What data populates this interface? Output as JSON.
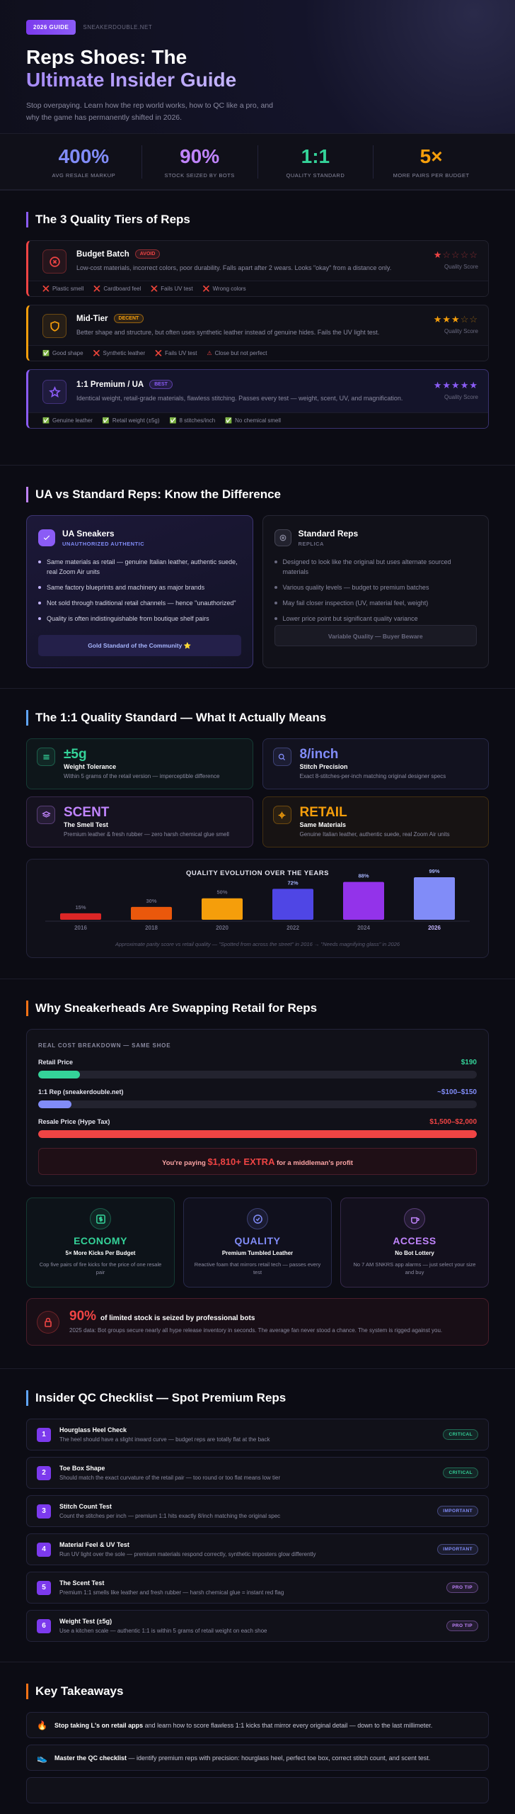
{
  "header": {
    "badge": "2026 GUIDE",
    "site": "SNEAKERDOUBLE.NET",
    "title_line1": "Reps Shoes: The",
    "title_line2": "Ultimate Insider Guide",
    "subtitle": "Stop overpaying. Learn how the rep world works, how to QC like a pro, and why the game has permanently shifted in 2026."
  },
  "stats": [
    {
      "value": "400%",
      "label": "AVG RESALE MARKUP",
      "color": "#818cf8"
    },
    {
      "value": "90%",
      "label": "STOCK SEIZED BY BOTS",
      "color": "#c084fc"
    },
    {
      "value": "1:1",
      "label": "QUALITY STANDARD",
      "color": "#34d399"
    },
    {
      "value": "5×",
      "label": "MORE PAIRS PER BUDGET",
      "color": "#f59e0b"
    }
  ],
  "tiers": {
    "title": "The 3 Quality Tiers of Reps",
    "score_label": "Quality Score",
    "items": [
      {
        "name": "Budget Batch",
        "tag": "AVOID",
        "color": "#ef4444",
        "stars": 1,
        "star_max": 5,
        "description": "Low-cost materials, incorrect colors, poor durability. Falls apart after 2 wears. Looks \"okay\" from a distance only.",
        "features": [
          {
            "icon": "❌",
            "text": "Plastic smell"
          },
          {
            "icon": "❌",
            "text": "Cardboard feel"
          },
          {
            "icon": "❌",
            "text": "Fails UV test"
          },
          {
            "icon": "❌",
            "text": "Wrong colors"
          }
        ]
      },
      {
        "name": "Mid-Tier",
        "tag": "DECENT",
        "color": "#f59e0b",
        "stars": 3,
        "star_max": 5,
        "description": "Better shape and structure, but often uses synthetic leather instead of genuine hides. Fails the UV light test.",
        "features": [
          {
            "icon": "✅",
            "text": "Good shape"
          },
          {
            "icon": "❌",
            "text": "Synthetic leather"
          },
          {
            "icon": "❌",
            "text": "Fails UV test"
          },
          {
            "icon": "⚠",
            "text": "Close but not perfect"
          }
        ]
      },
      {
        "name": "1:1 Premium / UA",
        "tag": "BEST",
        "color": "#8b5cf6",
        "stars": 5,
        "star_max": 5,
        "description": "Identical weight, retail-grade materials, flawless stitching. Passes every test — weight, scent, UV, and magnification.",
        "features": [
          {
            "icon": "✅",
            "text": "Genuine leather"
          },
          {
            "icon": "✅",
            "text": "Retail weight (±5g)"
          },
          {
            "icon": "✅",
            "text": "8 stitches/inch"
          },
          {
            "icon": "✅",
            "text": "No chemical smell"
          }
        ]
      }
    ]
  },
  "ua": {
    "title": "UA vs Standard Reps: Know the Difference",
    "cards": [
      {
        "name": "UA Sneakers",
        "subtitle": "UNAUTHORIZED AUTHENTIC",
        "bullets": [
          "Same materials as retail — genuine Italian leather, authentic suede, real Zoom Air units",
          "Same factory blueprints and machinery as major brands",
          "Not sold through traditional retail channels — hence \"unauthorized\"",
          "Quality is often indistinguishable from boutique shelf pairs"
        ],
        "footer": "Gold Standard of the Community ⭐"
      },
      {
        "name": "Standard Reps",
        "subtitle": "REPLICA",
        "bullets": [
          "Designed to look like the original but uses alternate sourced materials",
          "Various quality levels — budget to premium batches",
          "May fail closer inspection (UV, material feel, weight)",
          "Lower price point but significant quality variance"
        ],
        "footer": "Variable Quality — Buyer Beware"
      }
    ]
  },
  "standard": {
    "title": "The 1:1 Quality Standard — What It Actually Means",
    "metrics": [
      {
        "value": "±5g",
        "name": "Weight Tolerance",
        "description": "Within 5 grams of the retail version — imperceptible difference",
        "color": "#34d399"
      },
      {
        "value": "8/inch",
        "name": "Stitch Precision",
        "description": "Exact 8-stitches-per-inch matching original designer specs",
        "color": "#818cf8"
      },
      {
        "value": "SCENT",
        "name": "The Smell Test",
        "description": "Premium leather & fresh rubber — zero harsh chemical glue smell",
        "color": "#c084fc"
      },
      {
        "value": "RETAIL",
        "name": "Same Materials",
        "description": "Genuine Italian leather, authentic suede, real Zoom Air units",
        "color": "#f59e0b"
      }
    ],
    "chart_data": {
      "type": "bar",
      "title": "QUALITY EVOLUTION OVER THE YEARS",
      "categories": [
        "2016",
        "2018",
        "2020",
        "2022",
        "2024",
        "2026"
      ],
      "values": [
        15,
        30,
        50,
        72,
        88,
        99
      ],
      "value_labels": [
        "15%",
        "30%",
        "50%",
        "72%",
        "88%",
        "99%"
      ],
      "colors": [
        "#dc2626",
        "#ea580c",
        "#f59e0b",
        "#4f46e5",
        "#9333ea",
        "#818cf8"
      ],
      "caption": "Approximate parity score vs retail quality — \"Spotted from across the street\" in 2016 → \"Needs magnifying glass\" in 2026"
    }
  },
  "swap": {
    "title": "Why Sneakerheads Are Swapping Retail for Reps",
    "heading": "REAL COST BREAKDOWN — SAME SHOE",
    "rows": [
      {
        "label": "Retail Price",
        "price": "$190",
        "min": 190,
        "max": 190,
        "color": "#34d399"
      },
      {
        "label": "1:1 Rep (sneakerdouble.net)",
        "price": "~$100–$150",
        "min": 100,
        "max": 150,
        "color": "#818cf8"
      },
      {
        "label": "Resale Price (Hype Tax)",
        "price": "$1,500–$2,000",
        "min": 1500,
        "max": 2000,
        "color": "#ef4444"
      }
    ],
    "callout": {
      "before": "You're paying",
      "highlight": "$1,810+ EXTRA",
      "after": "for a middleman's profit"
    },
    "benefits": [
      {
        "title": "ECONOMY",
        "subtitle": "5× More Kicks Per Budget",
        "text": "Cop five pairs of fire kicks for the price of one resale pair",
        "color": "#34d399"
      },
      {
        "title": "QUALITY",
        "subtitle": "Premium Tumbled Leather",
        "text": "Reactive foam that mirrors retail tech — passes every test",
        "color": "#818cf8"
      },
      {
        "title": "ACCESS",
        "subtitle": "No Bot Lottery",
        "text": "No 7 AM SNKRS app alarms — just select your size and buy",
        "color": "#c084fc"
      }
    ],
    "bots": {
      "value": "90%",
      "headline": "of limited stock is seized by professional bots",
      "detail": "2025 data: Bot groups secure nearly all hype release inventory in seconds. The average fan never stood a chance. The system is rigged against you."
    }
  },
  "checklist": {
    "title": "Insider QC Checklist — Spot Premium Reps",
    "items": [
      {
        "number": 1,
        "name": "Hourglass Heel Check",
        "text": "The heel should have a slight inward curve — budget reps are totally flat at the back",
        "badge": "CRITICAL",
        "badge_color": "#34d399"
      },
      {
        "number": 2,
        "name": "Toe Box Shape",
        "text": "Should match the exact curvature of the retail pair — too round or too flat means low tier",
        "badge": "CRITICAL",
        "badge_color": "#34d399"
      },
      {
        "number": 3,
        "name": "Stitch Count Test",
        "text": "Count the stitches per inch — premium 1:1 hits exactly 8/inch matching the original spec",
        "badge": "IMPORTANT",
        "badge_color": "#818cf8"
      },
      {
        "number": 4,
        "name": "Material Feel & UV Test",
        "text": "Run UV light over the sole — premium materials respond correctly, synthetic imposters glow differently",
        "badge": "IMPORTANT",
        "badge_color": "#818cf8"
      },
      {
        "number": 5,
        "name": "The Scent Test",
        "text": "Premium 1:1 smells like leather and fresh rubber — harsh chemical glue = instant red flag",
        "badge": "PRO TIP",
        "badge_color": "#c084fc"
      },
      {
        "number": 6,
        "name": "Weight Test (±5g)",
        "text": "Use a kitchen scale — authentic 1:1 is within 5 grams of retail weight on each shoe",
        "badge": "PRO TIP",
        "badge_color": "#c084fc"
      }
    ]
  },
  "takeaways": {
    "title": "Key Takeaways",
    "items": [
      {
        "icon": "🔥",
        "bold": "Stop taking L's on retail apps",
        "text": "and learn how to score flawless 1:1 kicks that mirror every original detail — down to the last millimeter."
      },
      {
        "icon": "👟",
        "bold": "Master the QC checklist",
        "text": "— identify premium reps with precision: hourglass heel, perfect toe box, correct stitch count, and scent test."
      }
    ]
  }
}
